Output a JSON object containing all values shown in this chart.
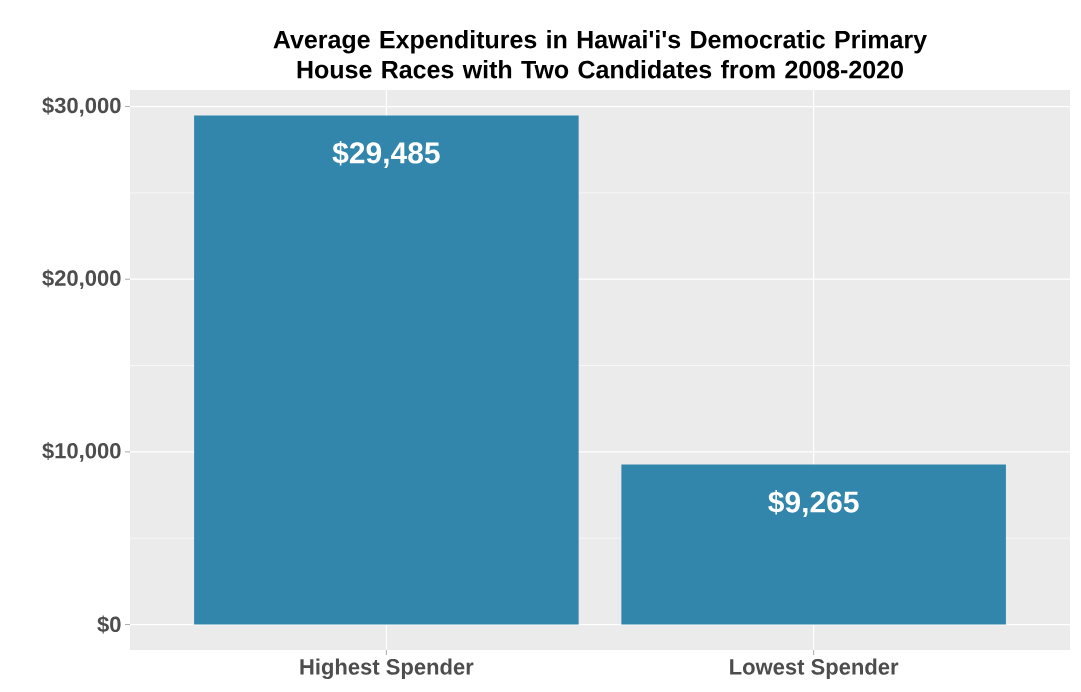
{
  "chart_data": {
    "type": "bar",
    "title": "Average Expenditures in Hawai'i's Democratic Primary House Races with Two Candidates from 2008-2020",
    "categories": [
      "Highest Spender",
      "Lowest Spender"
    ],
    "values": [
      29485,
      9265
    ],
    "value_labels": [
      "$29,485",
      "$9,265"
    ],
    "color": "#3386ab",
    "ylim": [
      -1474,
      30959
    ],
    "yticks": [
      {
        "value": 0,
        "label": "$0"
      },
      {
        "value": 10000,
        "label": "$10,000"
      },
      {
        "value": 20000,
        "label": "$20,000"
      },
      {
        "value": 30000,
        "label": "$30,000"
      }
    ],
    "grid": true
  }
}
